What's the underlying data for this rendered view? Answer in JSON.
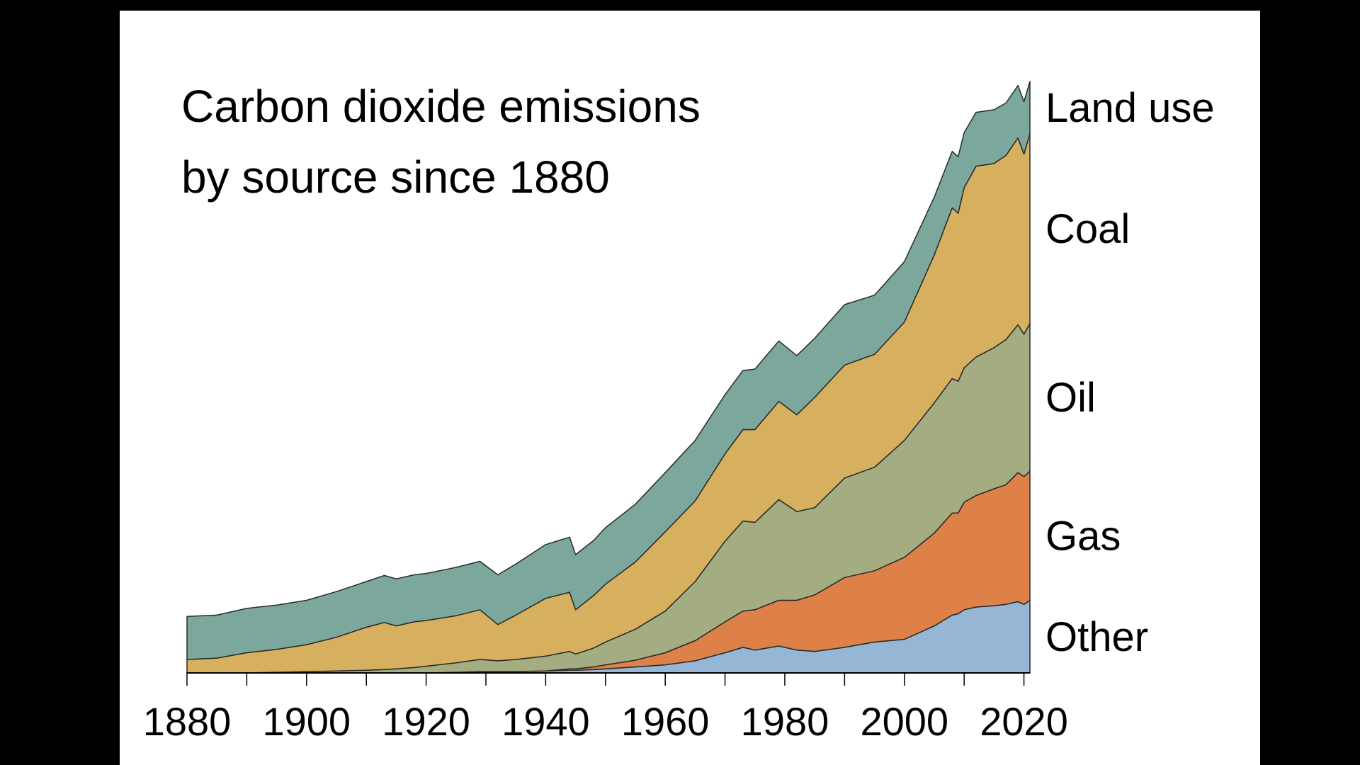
{
  "chart_data": {
    "type": "area",
    "stacked": true,
    "title_lines": [
      "Carbon dioxide emissions",
      "by source since 1880"
    ],
    "xlabel": "",
    "ylabel": "",
    "xlim": [
      1880,
      2021
    ],
    "ylim": [
      0,
      44
    ],
    "x_ticks": [
      1880,
      1900,
      1920,
      1940,
      1960,
      1980,
      2000,
      2020
    ],
    "grid": false,
    "legend": "direct labels at right end",
    "x": [
      1880,
      1885,
      1890,
      1895,
      1900,
      1905,
      1910,
      1913,
      1915,
      1918,
      1920,
      1925,
      1929,
      1932,
      1935,
      1940,
      1944,
      1945,
      1948,
      1950,
      1955,
      1960,
      1965,
      1970,
      1973,
      1975,
      1979,
      1982,
      1985,
      1990,
      1995,
      2000,
      2005,
      2008,
      2009,
      2010,
      2012,
      2015,
      2017,
      2019,
      2020,
      2021
    ],
    "series": [
      {
        "name": "Other",
        "color": "#95b6d4",
        "values": [
          0,
          0,
          0,
          0,
          0,
          0,
          0,
          0,
          0,
          0,
          0,
          0.05,
          0.1,
          0.1,
          0.1,
          0.15,
          0.2,
          0.2,
          0.25,
          0.3,
          0.45,
          0.6,
          0.9,
          1.5,
          1.9,
          1.7,
          2.0,
          1.7,
          1.6,
          1.9,
          2.3,
          2.5,
          3.5,
          4.3,
          4.4,
          4.7,
          4.9,
          5.0,
          5.1,
          5.3,
          5.1,
          5.4
        ]
      },
      {
        "name": "Gas",
        "color": "#dd8149",
        "values": [
          0,
          0,
          0,
          0,
          0,
          0,
          0,
          0,
          0,
          0,
          0,
          0,
          0,
          0,
          0,
          0,
          0.1,
          0.1,
          0.2,
          0.3,
          0.5,
          0.9,
          1.5,
          2.3,
          2.7,
          3.0,
          3.4,
          3.7,
          4.2,
          5.2,
          5.3,
          6.1,
          6.9,
          7.6,
          7.5,
          8.0,
          8.3,
          8.7,
          8.9,
          9.6,
          9.5,
          9.6
        ]
      },
      {
        "name": "Oil",
        "color": "#a4ac81",
        "values": [
          0,
          0,
          0,
          0.05,
          0.1,
          0.15,
          0.2,
          0.25,
          0.3,
          0.4,
          0.5,
          0.7,
          0.9,
          0.8,
          0.9,
          1.1,
          1.3,
          1.1,
          1.4,
          1.7,
          2.3,
          3.1,
          4.4,
          6.0,
          6.7,
          6.5,
          7.5,
          6.6,
          6.5,
          7.4,
          7.7,
          8.7,
          9.7,
          10.0,
          9.8,
          10.0,
          10.3,
          10.5,
          10.8,
          11.0,
          10.6,
          11.0
        ]
      },
      {
        "name": "Coal",
        "color": "#d6b05e",
        "values": [
          1.0,
          1.1,
          1.5,
          1.7,
          2.0,
          2.5,
          3.2,
          3.5,
          3.2,
          3.4,
          3.4,
          3.5,
          3.7,
          2.7,
          3.3,
          4.3,
          4.4,
          3.3,
          3.9,
          4.3,
          5.0,
          5.9,
          6.0,
          6.5,
          6.8,
          6.9,
          7.3,
          7.2,
          8.2,
          8.4,
          8.4,
          8.8,
          11.0,
          12.7,
          12.5,
          13.4,
          14.2,
          13.7,
          13.7,
          13.9,
          13.4,
          14.1
        ]
      },
      {
        "name": "Land use",
        "color": "#7ba79c",
        "values": [
          3.2,
          3.2,
          3.3,
          3.3,
          3.3,
          3.4,
          3.4,
          3.5,
          3.5,
          3.5,
          3.5,
          3.6,
          3.6,
          3.7,
          3.8,
          4.0,
          4.1,
          4.1,
          4.1,
          4.2,
          4.3,
          4.4,
          4.5,
          4.4,
          4.4,
          4.5,
          4.5,
          4.4,
          4.4,
          4.5,
          4.4,
          4.5,
          4.3,
          4.2,
          4.2,
          4.1,
          4.0,
          4.0,
          3.9,
          3.9,
          3.9,
          3.9
        ]
      }
    ]
  }
}
